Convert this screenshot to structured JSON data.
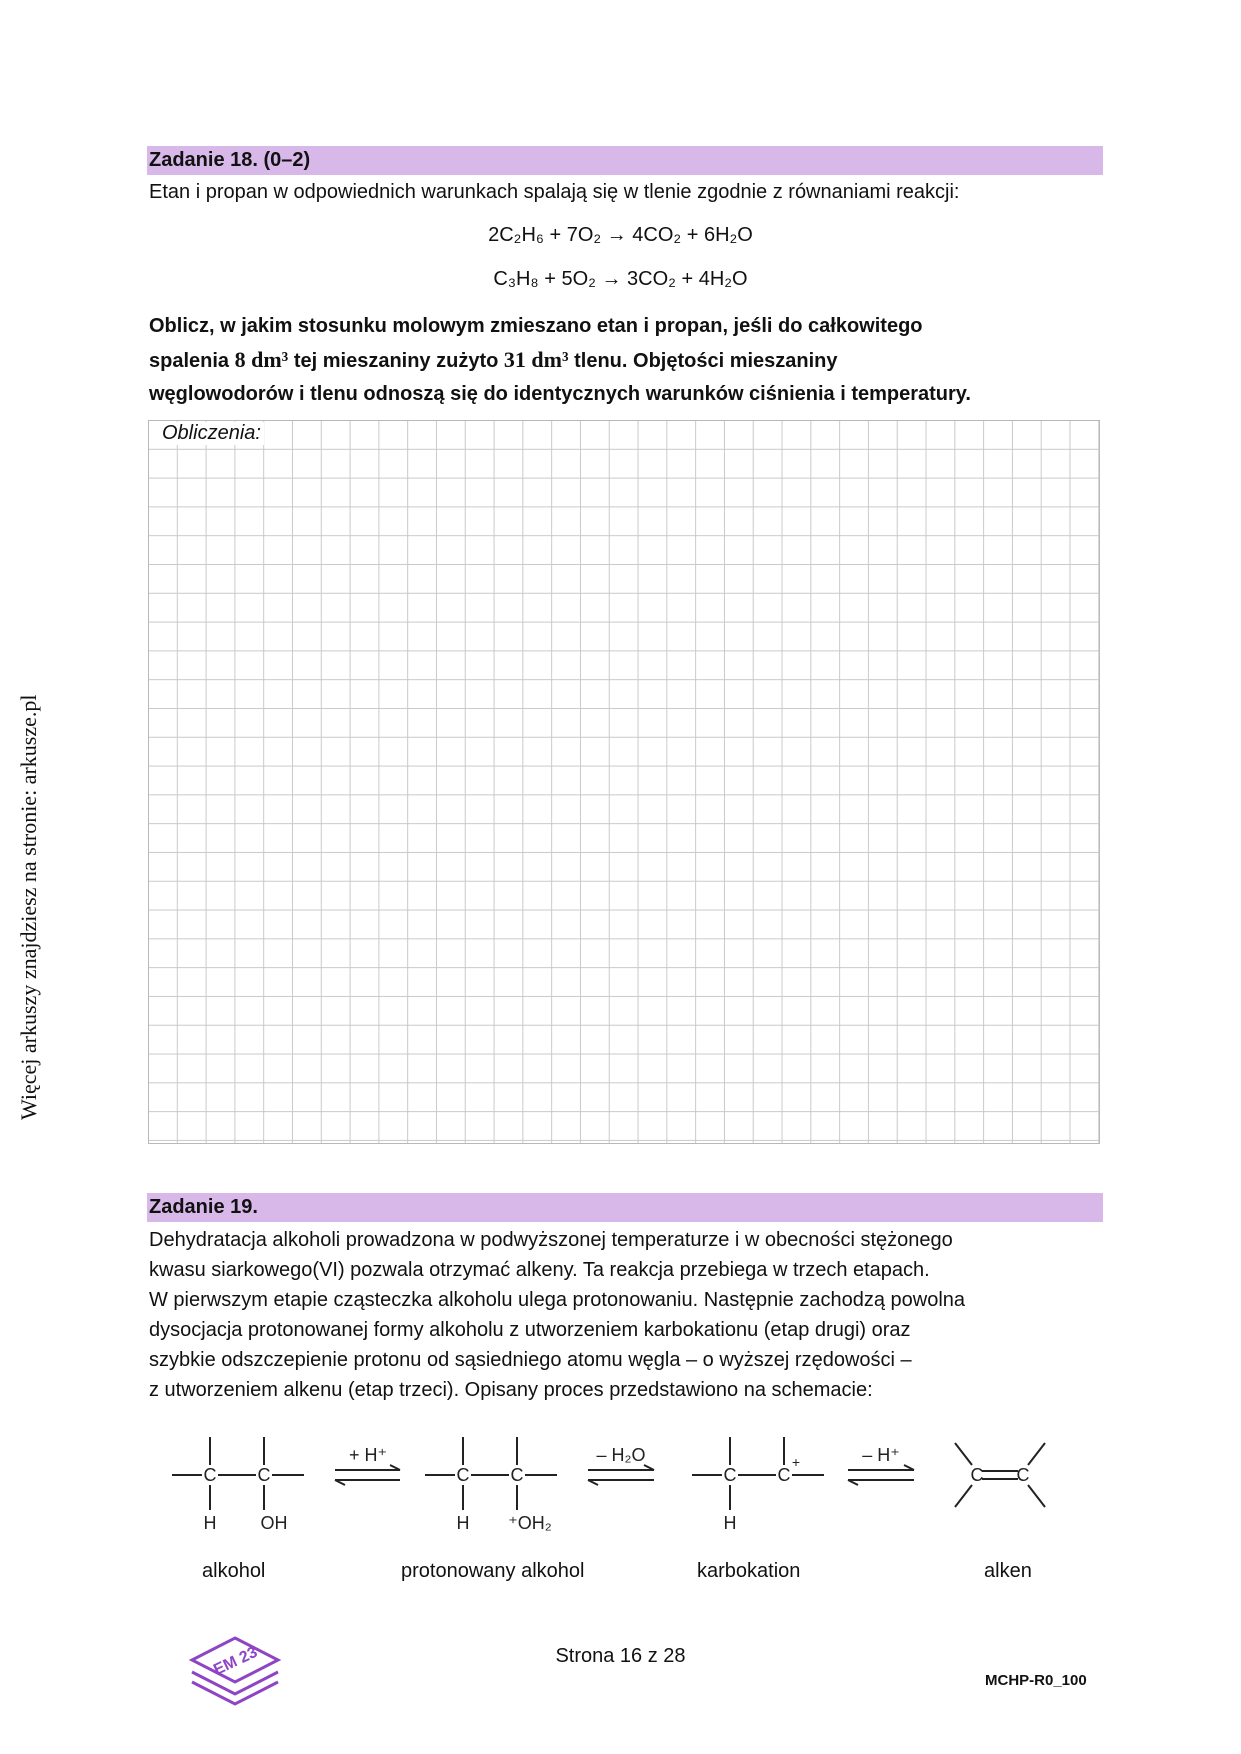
{
  "side_note": "Więcej arkuszy znajdziesz na stronie: arkusze.pl",
  "task18": {
    "header": "Zadanie 18. (0–2)",
    "intro": "Etan i propan w odpowiednich warunkach spalają się w tlenie zgodnie z równaniami reakcji:",
    "eq1": "2C₂H₆ + 7O₂ → 4CO₂ + 6H₂O",
    "eq2": "C₃H₈ + 5O₂ → 3CO₂ + 4H₂O",
    "question_l1": "Oblicz, w jakim stosunku molowym zmieszano etan i propan, jeśli do całkowitego",
    "question_l2a": "spalenia ",
    "question_l2b": "8 dm³",
    "question_l2c": " tej mieszaniny zużyto ",
    "question_l2d": "31 dm³",
    "question_l2e": " tlenu. Objętości mieszaniny",
    "question_l3": "węglowodorów i tlenu odnoszą się do identycznych warunków ciśnienia i temperatury.",
    "calc_label": "Obliczenia:"
  },
  "task19": {
    "header": "Zadanie 19.",
    "lines": [
      "Dehydratacja alkoholi prowadzona w podwyższonej temperaturze i w obecności stężonego",
      "kwasu siarkowego(VI) pozwala otrzymać alkeny. Ta reakcja przebiega w trzech etapach.",
      "W pierwszym etapie cząsteczka alkoholu ulega protonowaniu. Następnie zachodzą powolna",
      "dysocjacja protonowanej formy alkoholu z utworzeniem karbokationu (etap drugi) oraz",
      "szybkie odszczepienie protonu od sąsiedniego atomu węgla – o wyższej rzędowości –",
      "z utworzeniem alkenu (etap trzeci). Opisany proces przedstawiono na schemacie:"
    ],
    "scheme": {
      "arrow1": "+ H⁺",
      "arrow2": "– H₂O",
      "arrow3": "– H⁺",
      "atom_c": "C",
      "atom_h": "H",
      "oh": "OH",
      "oh2": "⁺OH₂",
      "plus": "+"
    },
    "labels": [
      "alkohol",
      "protonowany alkohol",
      "karbokation",
      "alken"
    ]
  },
  "footer": {
    "page": "Strona 16 z 28",
    "code": "MCHP-R0_100",
    "logo_text": "EM 23"
  }
}
